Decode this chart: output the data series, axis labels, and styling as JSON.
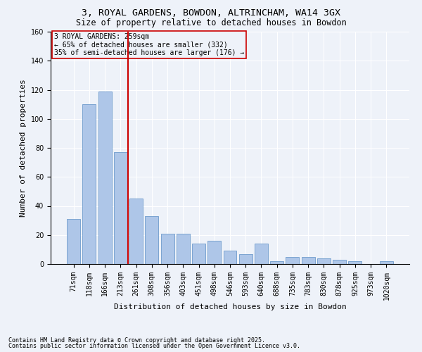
{
  "title1": "3, ROYAL GARDENS, BOWDON, ALTRINCHAM, WA14 3GX",
  "title2": "Size of property relative to detached houses in Bowdon",
  "xlabel": "Distribution of detached houses by size in Bowdon",
  "ylabel": "Number of detached properties",
  "footnote1": "Contains HM Land Registry data © Crown copyright and database right 2025.",
  "footnote2": "Contains public sector information licensed under the Open Government Licence v3.0.",
  "bar_labels": [
    "71sqm",
    "118sqm",
    "166sqm",
    "213sqm",
    "261sqm",
    "308sqm",
    "356sqm",
    "403sqm",
    "451sqm",
    "498sqm",
    "546sqm",
    "593sqm",
    "640sqm",
    "688sqm",
    "735sqm",
    "783sqm",
    "830sqm",
    "878sqm",
    "925sqm",
    "973sqm",
    "1020sqm"
  ],
  "bar_values": [
    31,
    110,
    119,
    77,
    45,
    33,
    21,
    21,
    14,
    16,
    9,
    7,
    14,
    2,
    5,
    5,
    4,
    3,
    2,
    0,
    2
  ],
  "bar_color": "#aec6e8",
  "bar_edge_color": "#5b8ec4",
  "background_color": "#eef2f9",
  "grid_color": "#ffffff",
  "annotation_text": "3 ROYAL GARDENS: 259sqm\n← 65% of detached houses are smaller (332)\n35% of semi-detached houses are larger (176) →",
  "vline_color": "#cc0000",
  "annotation_box_edge_color": "#cc0000",
  "ylim": [
    0,
    160
  ],
  "yticks": [
    0,
    20,
    40,
    60,
    80,
    100,
    120,
    140,
    160
  ],
  "title_fontsize": 9.5,
  "subtitle_fontsize": 8.5,
  "axis_label_fontsize": 8,
  "tick_fontsize": 7,
  "annotation_fontsize": 7,
  "footnote_fontsize": 6
}
